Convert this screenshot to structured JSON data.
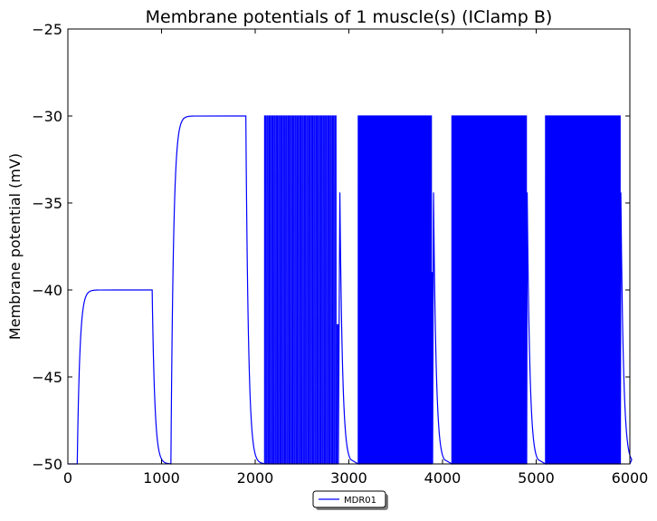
{
  "chart_data": {
    "type": "line",
    "title": "Membrane potentials of 1 muscle(s) (IClamp B)",
    "xlabel": "",
    "ylabel": "Membrane potential (mV)",
    "xlim": [
      0,
      6000
    ],
    "ylim": [
      -50,
      -25
    ],
    "xticks": [
      0,
      1000,
      2000,
      3000,
      4000,
      5000,
      6000
    ],
    "xtick_labels": [
      "0",
      "1000",
      "2000",
      "3000",
      "4000",
      "5000",
      "6000"
    ],
    "yticks": [
      -50,
      -45,
      -40,
      -35,
      -30,
      -25
    ],
    "ytick_labels": [
      "−50",
      "−45",
      "−40",
      "−35",
      "−30",
      "−25"
    ],
    "grid": false,
    "legend_position": "bottom-center",
    "series": [
      {
        "name": "MDR01",
        "color": "#0000ff",
        "segments": [
          {
            "type": "plateau",
            "start": 100,
            "end": 900,
            "level": -40
          },
          {
            "type": "plateau",
            "start": 1100,
            "end": 1900,
            "level": -30
          },
          {
            "type": "spikes",
            "start": 2100,
            "end": 2900,
            "peak": -30,
            "count": 32,
            "last_peak": -42
          },
          {
            "type": "spikes",
            "start": 3100,
            "end": 3900,
            "peak": -30,
            "count": 64,
            "last_peak": -39
          },
          {
            "type": "spikes",
            "start": 4100,
            "end": 4900,
            "peak": -30,
            "count": 260,
            "last_peak": -47
          },
          {
            "type": "spikes",
            "start": 5100,
            "end": 5900,
            "peak": -30,
            "count": 330,
            "last_peak": -37.5
          }
        ],
        "baseline": -50
      }
    ]
  }
}
